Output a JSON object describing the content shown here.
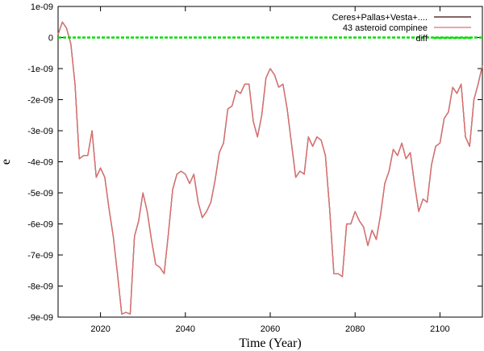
{
  "chart_data": {
    "type": "line",
    "title": "",
    "xlabel": "Time (Year)",
    "ylabel": "e",
    "xlim": [
      2010,
      2110
    ],
    "ylim": [
      -9e-09,
      1e-09
    ],
    "x_ticks": [
      2020,
      2040,
      2060,
      2080,
      2100
    ],
    "x_tick_labels": [
      "2020",
      "2040",
      "2060",
      "2080",
      "2100"
    ],
    "y_ticks": [
      1e-09,
      0,
      -1e-09,
      -2e-09,
      -3e-09,
      -4e-09,
      -5e-09,
      -6e-09,
      -7e-09,
      -8e-09,
      -9e-09
    ],
    "y_tick_labels": [
      "1e-09",
      "0",
      "-1e-09",
      "-2e-09",
      "-3e-09",
      "-4e-09",
      "-5e-09",
      "-6e-09",
      "-7e-09",
      "-8e-09",
      "-9e-09"
    ],
    "grid": false,
    "legend_position": "top-right",
    "series": [
      {
        "name": "Ceres+Pallas+Vesta+....",
        "color": "#3a0a0a",
        "x": [
          2010,
          2011,
          2012,
          2013,
          2014,
          2015,
          2016,
          2017,
          2018,
          2019,
          2020,
          2021,
          2022,
          2023,
          2024,
          2025,
          2026,
          2027,
          2028,
          2029,
          2030,
          2031,
          2032,
          2033,
          2034,
          2035,
          2036,
          2037,
          2038,
          2039,
          2040,
          2041,
          2042,
          2043,
          2044,
          2045,
          2046,
          2047,
          2048,
          2049,
          2050,
          2051,
          2052,
          2053,
          2054,
          2055,
          2056,
          2057,
          2058,
          2059,
          2060,
          2061,
          2062,
          2063,
          2064,
          2065,
          2066,
          2067,
          2068,
          2069,
          2070,
          2071,
          2072,
          2073,
          2074,
          2075,
          2076,
          2077,
          2078,
          2079,
          2080,
          2081,
          2082,
          2083,
          2084,
          2085,
          2086,
          2087,
          2088,
          2089,
          2090,
          2091,
          2092,
          2093,
          2094,
          2095,
          2096,
          2097,
          2098,
          2099,
          2100,
          2101,
          2102,
          2103,
          2104,
          2105,
          2106,
          2107,
          2108,
          2109,
          2110
        ],
        "values": [
          1e-10,
          5e-10,
          3e-10,
          -2e-10,
          -1.5e-09,
          -3.9e-09,
          -3.8e-09,
          -3.8e-09,
          -3e-09,
          -4.5e-09,
          -4.2e-09,
          -4.5e-09,
          -5.5e-09,
          -6.4e-09,
          -7.6e-09,
          -8.9e-09,
          -8.85e-09,
          -8.9e-09,
          -6.4e-09,
          -5.9e-09,
          -5e-09,
          -5.6e-09,
          -6.5e-09,
          -7.3e-09,
          -7.4e-09,
          -7.6e-09,
          -6.3e-09,
          -4.9e-09,
          -4.4e-09,
          -4.3e-09,
          -4.4e-09,
          -4.7e-09,
          -4.4e-09,
          -5.3e-09,
          -5.8e-09,
          -5.6e-09,
          -5.3e-09,
          -4.6e-09,
          -3.7e-09,
          -3.4e-09,
          -2.3e-09,
          -2.2e-09,
          -1.7e-09,
          -1.8e-09,
          -1.5e-09,
          -1.5e-09,
          -2.7e-09,
          -3.2e-09,
          -2.5e-09,
          -1.3e-09,
          -1e-09,
          -1.2e-09,
          -1.6e-09,
          -1.5e-09,
          -2.3e-09,
          -3.4e-09,
          -4.5e-09,
          -4.3e-09,
          -4.4e-09,
          -3.2e-09,
          -3.5e-09,
          -3.2e-09,
          -3.3e-09,
          -3.8e-09,
          -5.5e-09,
          -7.6e-09,
          -7.6e-09,
          -7.7e-09,
          -6e-09,
          -6e-09,
          -5.6e-09,
          -5.9e-09,
          -6.1e-09,
          -6.7e-09,
          -6.2e-09,
          -6.5e-09,
          -5.7e-09,
          -4.7e-09,
          -4.3e-09,
          -3.6e-09,
          -3.8e-09,
          -3.4e-09,
          -3.9e-09,
          -3.7e-09,
          -4.7e-09,
          -5.6e-09,
          -5.2e-09,
          -5.3e-09,
          -4.1e-09,
          -3.5e-09,
          -3.4e-09,
          -2.6e-09,
          -2.4e-09,
          -1.6e-09,
          -1.8e-09,
          -1.5e-09,
          -3.2e-09,
          -3.5e-09,
          -2e-09,
          -1.5e-09,
          -9e-10
        ]
      },
      {
        "name": "43 asteroid compinee",
        "color": "#e07070",
        "x": [
          2010,
          2011,
          2012,
          2013,
          2014,
          2015,
          2016,
          2017,
          2018,
          2019,
          2020,
          2021,
          2022,
          2023,
          2024,
          2025,
          2026,
          2027,
          2028,
          2029,
          2030,
          2031,
          2032,
          2033,
          2034,
          2035,
          2036,
          2037,
          2038,
          2039,
          2040,
          2041,
          2042,
          2043,
          2044,
          2045,
          2046,
          2047,
          2048,
          2049,
          2050,
          2051,
          2052,
          2053,
          2054,
          2055,
          2056,
          2057,
          2058,
          2059,
          2060,
          2061,
          2062,
          2063,
          2064,
          2065,
          2066,
          2067,
          2068,
          2069,
          2070,
          2071,
          2072,
          2073,
          2074,
          2075,
          2076,
          2077,
          2078,
          2079,
          2080,
          2081,
          2082,
          2083,
          2084,
          2085,
          2086,
          2087,
          2088,
          2089,
          2090,
          2091,
          2092,
          2093,
          2094,
          2095,
          2096,
          2097,
          2098,
          2099,
          2100,
          2101,
          2102,
          2103,
          2104,
          2105,
          2106,
          2107,
          2108,
          2109,
          2110
        ],
        "values": [
          1e-10,
          5e-10,
          3e-10,
          -2e-10,
          -1.5e-09,
          -3.9e-09,
          -3.8e-09,
          -3.8e-09,
          -3e-09,
          -4.5e-09,
          -4.2e-09,
          -4.5e-09,
          -5.5e-09,
          -6.4e-09,
          -7.6e-09,
          -8.9e-09,
          -8.85e-09,
          -8.9e-09,
          -6.4e-09,
          -5.9e-09,
          -5e-09,
          -5.6e-09,
          -6.5e-09,
          -7.3e-09,
          -7.4e-09,
          -7.6e-09,
          -6.3e-09,
          -4.9e-09,
          -4.4e-09,
          -4.3e-09,
          -4.4e-09,
          -4.7e-09,
          -4.4e-09,
          -5.3e-09,
          -5.8e-09,
          -5.6e-09,
          -5.3e-09,
          -4.6e-09,
          -3.7e-09,
          -3.4e-09,
          -2.3e-09,
          -2.2e-09,
          -1.7e-09,
          -1.8e-09,
          -1.5e-09,
          -1.5e-09,
          -2.7e-09,
          -3.2e-09,
          -2.5e-09,
          -1.3e-09,
          -1e-09,
          -1.2e-09,
          -1.6e-09,
          -1.5e-09,
          -2.3e-09,
          -3.4e-09,
          -4.5e-09,
          -4.3e-09,
          -4.4e-09,
          -3.2e-09,
          -3.5e-09,
          -3.2e-09,
          -3.3e-09,
          -3.8e-09,
          -5.5e-09,
          -7.6e-09,
          -7.6e-09,
          -7.7e-09,
          -6e-09,
          -6e-09,
          -5.6e-09,
          -5.9e-09,
          -6.1e-09,
          -6.7e-09,
          -6.2e-09,
          -6.5e-09,
          -5.7e-09,
          -4.7e-09,
          -4.3e-09,
          -3.6e-09,
          -3.8e-09,
          -3.4e-09,
          -3.9e-09,
          -3.7e-09,
          -4.7e-09,
          -5.6e-09,
          -5.2e-09,
          -5.3e-09,
          -4.1e-09,
          -3.5e-09,
          -3.4e-09,
          -2.6e-09,
          -2.4e-09,
          -1.6e-09,
          -1.8e-09,
          -1.5e-09,
          -3.2e-09,
          -3.5e-09,
          -2e-09,
          -1.5e-09,
          -9e-10
        ]
      },
      {
        "name": "diff",
        "color": "#00dd00",
        "dashed": true,
        "x": [
          2010,
          2110
        ],
        "values": [
          0,
          0
        ]
      }
    ]
  }
}
